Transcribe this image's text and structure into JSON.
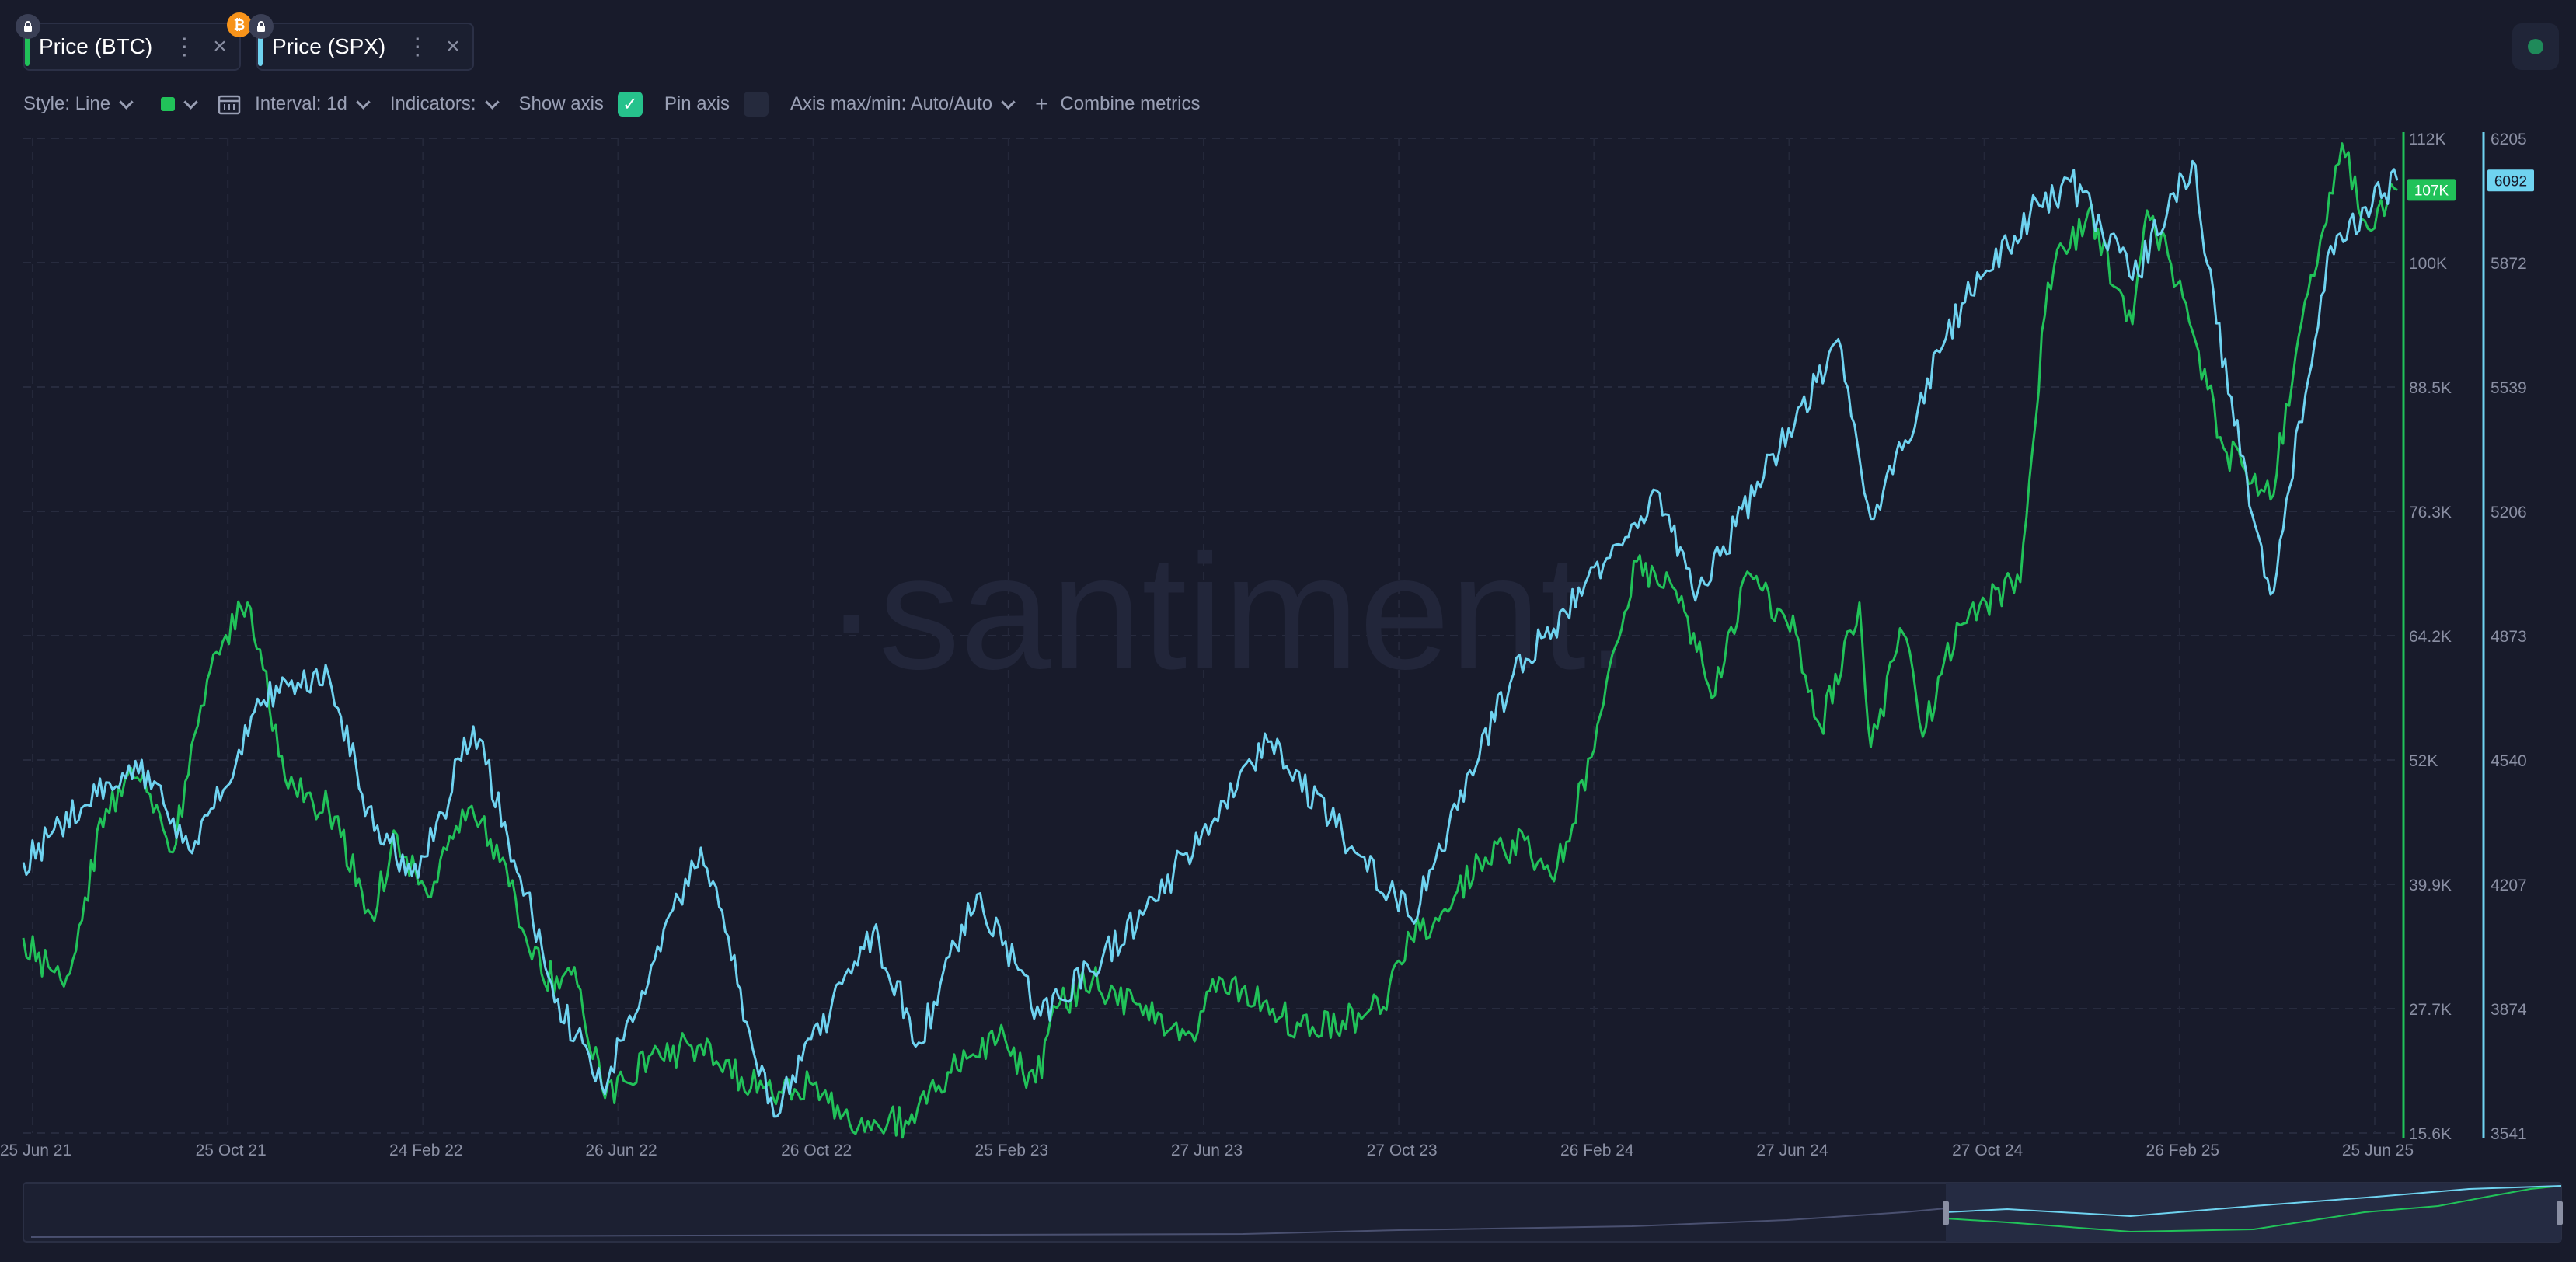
{
  "tabs": [
    {
      "label": "Price (BTC)",
      "color": "#21c259",
      "dots": "⋮",
      "close": "×"
    },
    {
      "label": "Price (SPX)",
      "color": "#6fd3f0",
      "dots": "⋮",
      "close": "×"
    }
  ],
  "badges": {
    "lock": "lock-icon",
    "btc": "₿",
    "btc_color": "#f7931a"
  },
  "toolbar": {
    "style": "Style: Line",
    "interval": "Interval: 1d",
    "indicators": "Indicators:",
    "show_axis": "Show axis",
    "show_axis_checked": true,
    "pin_axis": "Pin axis",
    "pin_axis_checked": false,
    "axis_maxmin": "Axis max/min: Auto/Auto",
    "combine_plus": "+",
    "combine": "Combine metrics"
  },
  "watermark": "·santiment.",
  "chart_data": {
    "type": "line",
    "x_ticks": [
      "25 Jun 21",
      "25 Oct 21",
      "24 Feb 22",
      "26 Jun 22",
      "26 Oct 22",
      "25 Feb 23",
      "27 Jun 23",
      "27 Oct 23",
      "26 Feb 24",
      "27 Jun 24",
      "27 Oct 24",
      "26 Feb 25",
      "25 Jun 25"
    ],
    "y_left_ticks": [
      "112K",
      "100K",
      "88.5K",
      "76.3K",
      "64.2K",
      "52K",
      "39.9K",
      "27.7K",
      "15.6K"
    ],
    "y_right_ticks": [
      "6205",
      "5872",
      "5539",
      "5206",
      "4873",
      "4540",
      "4207",
      "3874",
      "3541"
    ],
    "y_left_range": [
      15600,
      112000
    ],
    "y_right_range": [
      3541,
      6205
    ],
    "current_left_label": "107K",
    "current_right_label": "6092",
    "grid": true,
    "series": [
      {
        "name": "Price (BTC)",
        "axis": "left",
        "color": "#21c259",
        "x": [
          "2021-06-25",
          "2021-07-20",
          "2021-08-15",
          "2021-09-07",
          "2021-09-25",
          "2021-10-20",
          "2021-11-10",
          "2021-12-05",
          "2021-12-30",
          "2022-01-25",
          "2022-02-10",
          "2022-03-01",
          "2022-03-28",
          "2022-04-20",
          "2022-05-10",
          "2022-06-01",
          "2022-06-18",
          "2022-07-15",
          "2022-08-14",
          "2022-09-10",
          "2022-10-05",
          "2022-10-26",
          "2022-11-10",
          "2022-11-21",
          "2022-12-20",
          "2023-01-15",
          "2023-02-15",
          "2023-03-10",
          "2023-03-25",
          "2023-04-14",
          "2023-05-15",
          "2023-06-14",
          "2023-06-27",
          "2023-07-15",
          "2023-08-20",
          "2023-09-15",
          "2023-10-10",
          "2023-10-27",
          "2023-11-15",
          "2023-12-08",
          "2024-01-05",
          "2024-01-23",
          "2024-02-15",
          "2024-02-28",
          "2024-03-14",
          "2024-04-05",
          "2024-05-01",
          "2024-05-21",
          "2024-06-20",
          "2024-07-05",
          "2024-07-29",
          "2024-08-05",
          "2024-08-25",
          "2024-09-06",
          "2024-09-27",
          "2024-10-15",
          "2024-11-05",
          "2024-11-22",
          "2024-12-17",
          "2025-01-13",
          "2025-01-22",
          "2025-02-15",
          "2025-03-10",
          "2025-04-08",
          "2025-05-01",
          "2025-05-22",
          "2025-06-05",
          "2025-06-25"
        ],
        "values": [
          34500,
          29800,
          47000,
          50500,
          42800,
          62000,
          67000,
          49000,
          47000,
          36800,
          44500,
          38500,
          47300,
          39500,
          31000,
          30000,
          19000,
          23000,
          24000,
          21000,
          19500,
          20500,
          17000,
          16200,
          16800,
          21500,
          24800,
          20500,
          28200,
          30400,
          27000,
          25200,
          30500,
          29500,
          26000,
          26500,
          27800,
          34500,
          37000,
          42000,
          44000,
          40000,
          52000,
          62000,
          71000,
          68500,
          58000,
          70000,
          64000,
          55000,
          67000,
          53000,
          64000,
          54000,
          65000,
          67000,
          69000,
          98000,
          105000,
          94000,
          105000,
          96000,
          82000,
          77000,
          97000,
          111500,
          104000,
          107000
        ]
      },
      {
        "name": "Price (SPX)",
        "axis": "right",
        "color": "#6fd3f0",
        "x": [
          "2021-06-25",
          "2021-08-15",
          "2021-09-02",
          "2021-10-05",
          "2021-11-20",
          "2021-12-30",
          "2022-01-27",
          "2022-02-23",
          "2022-03-29",
          "2022-05-20",
          "2022-06-16",
          "2022-08-16",
          "2022-09-30",
          "2022-11-30",
          "2022-12-28",
          "2023-02-02",
          "2023-03-13",
          "2023-05-15",
          "2023-07-31",
          "2023-10-27",
          "2023-12-29",
          "2024-03-28",
          "2024-04-19",
          "2024-07-16",
          "2024-08-05",
          "2024-09-30",
          "2024-11-11",
          "2024-12-06",
          "2025-01-13",
          "2025-02-19",
          "2025-03-13",
          "2025-04-08",
          "2025-05-15",
          "2025-06-25"
        ],
        "values": [
          4266,
          4480,
          4537,
          4300,
          4700,
          4766,
          4350,
          4225,
          4630,
          3900,
          3667,
          4305,
          3585,
          4080,
          3783,
          4180,
          3855,
          4125,
          4589,
          4117,
          4770,
          5254,
          4967,
          5667,
          5186,
          5762,
          6001,
          6090,
          5827,
          6144,
          5521,
          4983,
          5917,
          6092
        ]
      }
    ]
  }
}
